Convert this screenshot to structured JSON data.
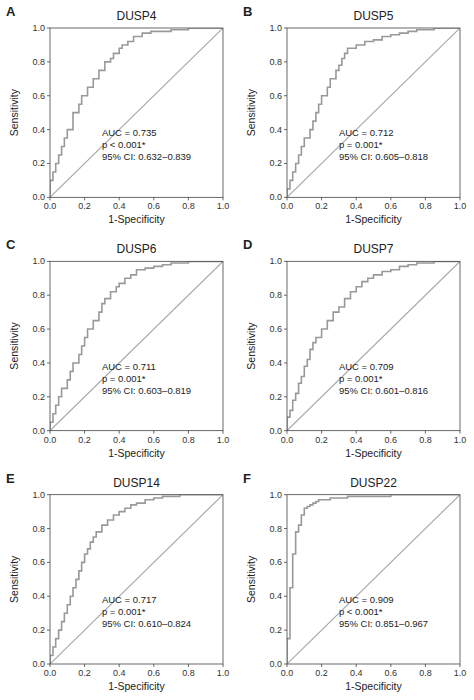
{
  "chart_data": [
    {
      "type": "line",
      "panel_label": "A",
      "title": "DUSP4",
      "x_label": "1-Specificity",
      "y_label": "Sensitivity",
      "annotations": [
        "AUC = 0.735",
        "p < 0.001*",
        "95% CI: 0.632–0.839"
      ],
      "xlim": [
        0,
        1
      ],
      "ylim": [
        0,
        1
      ],
      "xticks": [
        {
          "value": 0,
          "label": "0.0"
        },
        0.2,
        0.4,
        0.6,
        0.8,
        {
          "value": 1,
          "label": "1.0"
        }
      ],
      "yticks": [
        {
          "value": 0,
          "label": "0.0"
        },
        0.2,
        0.4,
        0.6,
        0.8,
        {
          "value": 1,
          "label": "1.0"
        }
      ],
      "grid": false,
      "series": [
        {
          "type": "line",
          "color": "#aaaaaa",
          "x": [
            0,
            1
          ],
          "values": [
            0,
            1
          ]
        },
        {
          "type": "step",
          "color": "#999999",
          "x": [
            0.0,
            0.0,
            0.017,
            0.017,
            0.033,
            0.05,
            0.05,
            0.067,
            0.083,
            0.083,
            0.1,
            0.117,
            0.133,
            0.133,
            0.15,
            0.167,
            0.183,
            0.2,
            0.217,
            0.233,
            0.25,
            0.267,
            0.283,
            0.3,
            0.317,
            0.333,
            0.35,
            0.367,
            0.383,
            0.4,
            0.417,
            0.433,
            0.45,
            0.467,
            0.483,
            0.5,
            0.517,
            0.533,
            0.55,
            0.567,
            0.583,
            0.6,
            0.65,
            0.7,
            0.75,
            0.8,
            0.85,
            0.9,
            0.95,
            1.0
          ],
          "values": [
            0.0,
            0.1,
            0.1,
            0.15,
            0.2,
            0.2,
            0.25,
            0.3,
            0.3,
            0.35,
            0.4,
            0.4,
            0.45,
            0.5,
            0.5,
            0.55,
            0.6,
            0.6,
            0.65,
            0.65,
            0.7,
            0.7,
            0.75,
            0.75,
            0.8,
            0.8,
            0.82,
            0.85,
            0.85,
            0.88,
            0.9,
            0.9,
            0.92,
            0.92,
            0.95,
            0.95,
            0.95,
            0.97,
            0.97,
            0.97,
            0.98,
            0.98,
            0.98,
            0.99,
            0.99,
            1.0,
            1.0,
            1.0,
            1.0,
            1.0
          ]
        }
      ]
    },
    {
      "type": "line",
      "panel_label": "B",
      "title": "DUSP5",
      "x_label": "1-Specificity",
      "y_label": "Sensitivity",
      "annotations": [
        "AUC = 0.712",
        "p = 0.001*",
        "95% CI: 0.605–0.818"
      ],
      "xlim": [
        0,
        1
      ],
      "ylim": [
        0,
        1
      ],
      "xticks": [
        {
          "value": 0,
          "label": "0.0"
        },
        0.2,
        0.4,
        0.6,
        0.8,
        {
          "value": 1,
          "label": "1.0"
        }
      ],
      "yticks": [
        {
          "value": 0,
          "label": "0.0"
        },
        0.2,
        0.4,
        0.6,
        0.8,
        {
          "value": 1,
          "label": "1.0"
        }
      ],
      "grid": false,
      "series": [
        {
          "type": "line",
          "color": "#aaaaaa",
          "x": [
            0,
            1
          ],
          "values": [
            0,
            1
          ]
        },
        {
          "type": "step",
          "color": "#999999",
          "x": [
            0.0,
            0.0,
            0.017,
            0.033,
            0.05,
            0.067,
            0.083,
            0.1,
            0.117,
            0.133,
            0.15,
            0.167,
            0.183,
            0.2,
            0.217,
            0.233,
            0.25,
            0.267,
            0.283,
            0.3,
            0.317,
            0.333,
            0.35,
            0.4,
            0.45,
            0.5,
            0.55,
            0.6,
            0.65,
            0.7,
            0.75,
            0.8,
            0.85,
            0.9,
            0.95,
            1.0
          ],
          "values": [
            0.0,
            0.05,
            0.1,
            0.15,
            0.2,
            0.25,
            0.3,
            0.35,
            0.35,
            0.4,
            0.45,
            0.5,
            0.55,
            0.6,
            0.6,
            0.65,
            0.7,
            0.7,
            0.75,
            0.78,
            0.82,
            0.85,
            0.88,
            0.9,
            0.92,
            0.93,
            0.95,
            0.96,
            0.97,
            0.98,
            0.99,
            0.99,
            1.0,
            1.0,
            1.0,
            1.0
          ]
        }
      ]
    },
    {
      "type": "line",
      "panel_label": "C",
      "title": "DUSP6",
      "x_label": "1-Specificity",
      "y_label": "Sensitivity",
      "annotations": [
        "AUC = 0.711",
        "p = 0.001*",
        "95% CI: 0.603–0.819"
      ],
      "xlim": [
        0,
        1
      ],
      "ylim": [
        0,
        1
      ],
      "xticks": [
        {
          "value": 0,
          "label": "0.0"
        },
        0.2,
        0.4,
        0.6,
        0.8,
        {
          "value": 1,
          "label": "1.0"
        }
      ],
      "yticks": [
        {
          "value": 0,
          "label": "0.0"
        },
        0.2,
        0.4,
        0.6,
        0.8,
        {
          "value": 1,
          "label": "1.0"
        }
      ],
      "grid": false,
      "series": [
        {
          "type": "line",
          "color": "#aaaaaa",
          "x": [
            0,
            1
          ],
          "values": [
            0,
            1
          ]
        },
        {
          "type": "step",
          "color": "#999999",
          "x": [
            0.0,
            0.0,
            0.017,
            0.033,
            0.05,
            0.067,
            0.083,
            0.1,
            0.117,
            0.133,
            0.15,
            0.167,
            0.183,
            0.2,
            0.217,
            0.25,
            0.283,
            0.3,
            0.317,
            0.35,
            0.383,
            0.4,
            0.433,
            0.467,
            0.5,
            0.55,
            0.6,
            0.65,
            0.7,
            0.75,
            0.8,
            0.85,
            0.9,
            1.0
          ],
          "values": [
            0.0,
            0.05,
            0.1,
            0.15,
            0.2,
            0.25,
            0.25,
            0.3,
            0.35,
            0.4,
            0.4,
            0.45,
            0.5,
            0.55,
            0.6,
            0.65,
            0.7,
            0.75,
            0.78,
            0.82,
            0.85,
            0.87,
            0.9,
            0.92,
            0.95,
            0.96,
            0.97,
            0.98,
            0.99,
            0.99,
            1.0,
            1.0,
            1.0,
            1.0
          ]
        }
      ]
    },
    {
      "type": "line",
      "panel_label": "D",
      "title": "DUSP7",
      "x_label": "1-Specificity",
      "y_label": "Sensitivity",
      "annotations": [
        "AUC = 0.709",
        "p = 0.001*",
        "95% CI: 0.601–0.816"
      ],
      "xlim": [
        0,
        1
      ],
      "ylim": [
        0,
        1
      ],
      "xticks": [
        {
          "value": 0,
          "label": "0.0"
        },
        0.2,
        0.4,
        0.6,
        0.8,
        {
          "value": 1,
          "label": "1.0"
        }
      ],
      "yticks": [
        {
          "value": 0,
          "label": "0.0"
        },
        0.2,
        0.4,
        0.6,
        0.8,
        {
          "value": 1,
          "label": "1.0"
        }
      ],
      "grid": false,
      "series": [
        {
          "type": "line",
          "color": "#aaaaaa",
          "x": [
            0,
            1
          ],
          "values": [
            0,
            1
          ]
        },
        {
          "type": "step",
          "color": "#999999",
          "x": [
            0.0,
            0.0,
            0.017,
            0.033,
            0.05,
            0.067,
            0.083,
            0.1,
            0.117,
            0.133,
            0.15,
            0.167,
            0.2,
            0.233,
            0.267,
            0.3,
            0.333,
            0.367,
            0.4,
            0.433,
            0.467,
            0.5,
            0.55,
            0.6,
            0.65,
            0.7,
            0.75,
            0.8,
            0.85,
            0.9,
            0.95,
            1.0
          ],
          "values": [
            0.0,
            0.08,
            0.12,
            0.18,
            0.22,
            0.28,
            0.32,
            0.38,
            0.42,
            0.48,
            0.52,
            0.55,
            0.6,
            0.65,
            0.7,
            0.73,
            0.78,
            0.82,
            0.85,
            0.88,
            0.9,
            0.92,
            0.94,
            0.95,
            0.97,
            0.98,
            0.99,
            0.99,
            1.0,
            1.0,
            1.0,
            1.0
          ]
        }
      ]
    },
    {
      "type": "line",
      "panel_label": "E",
      "title": "DUSP14",
      "x_label": "1-Specificity",
      "y_label": "Sensitivity",
      "annotations": [
        "AUC = 0.717",
        "p = 0.001*",
        "95% CI: 0.610–0.824"
      ],
      "xlim": [
        0,
        1
      ],
      "ylim": [
        0,
        1
      ],
      "xticks": [
        {
          "value": 0,
          "label": "0.0"
        },
        0.2,
        0.4,
        0.6,
        0.8,
        {
          "value": 1,
          "label": "1.0"
        }
      ],
      "yticks": [
        {
          "value": 0,
          "label": "0.0"
        },
        0.2,
        0.4,
        0.6,
        0.8,
        {
          "value": 1,
          "label": "1.0"
        }
      ],
      "grid": false,
      "series": [
        {
          "type": "line",
          "color": "#aaaaaa",
          "x": [
            0,
            1
          ],
          "values": [
            0,
            1
          ]
        },
        {
          "type": "step",
          "color": "#999999",
          "x": [
            0.0,
            0.0,
            0.017,
            0.033,
            0.05,
            0.067,
            0.083,
            0.1,
            0.117,
            0.133,
            0.15,
            0.167,
            0.183,
            0.2,
            0.217,
            0.233,
            0.25,
            0.267,
            0.3,
            0.333,
            0.367,
            0.4,
            0.433,
            0.467,
            0.5,
            0.55,
            0.6,
            0.65,
            0.7,
            0.75,
            0.8,
            0.85,
            0.9,
            0.95,
            1.0
          ],
          "values": [
            0.0,
            0.05,
            0.1,
            0.15,
            0.2,
            0.25,
            0.3,
            0.35,
            0.4,
            0.45,
            0.5,
            0.55,
            0.6,
            0.65,
            0.68,
            0.72,
            0.75,
            0.78,
            0.82,
            0.85,
            0.88,
            0.9,
            0.92,
            0.94,
            0.95,
            0.97,
            0.98,
            0.99,
            0.99,
            1.0,
            1.0,
            1.0,
            1.0,
            1.0,
            1.0
          ]
        }
      ]
    },
    {
      "type": "line",
      "panel_label": "F",
      "title": "DUSP22",
      "x_label": "1-Specificity",
      "y_label": "Sensitivity",
      "annotations": [
        "AUC = 0.909",
        "p < 0.001*",
        "95% CI: 0.851–0.967"
      ],
      "xlim": [
        0,
        1
      ],
      "ylim": [
        0,
        1
      ],
      "xticks": [
        {
          "value": 0,
          "label": "0.0"
        },
        0.2,
        0.4,
        0.6,
        0.8,
        {
          "value": 1,
          "label": "1.0"
        }
      ],
      "yticks": [
        {
          "value": 0,
          "label": "0.0"
        },
        0.2,
        0.4,
        0.6,
        0.8,
        {
          "value": 1,
          "label": "1.0"
        }
      ],
      "grid": false,
      "series": [
        {
          "type": "line",
          "color": "#aaaaaa",
          "x": [
            0,
            1
          ],
          "values": [
            0,
            1
          ]
        },
        {
          "type": "step",
          "color": "#999999",
          "x": [
            0.0,
            0.0,
            0.017,
            0.017,
            0.033,
            0.033,
            0.05,
            0.05,
            0.067,
            0.083,
            0.083,
            0.1,
            0.1,
            0.117,
            0.133,
            0.15,
            0.167,
            0.183,
            0.2,
            0.25,
            0.3,
            0.35,
            0.4,
            0.5,
            0.6,
            0.7,
            0.8,
            0.9,
            1.0
          ],
          "values": [
            0.0,
            0.15,
            0.3,
            0.45,
            0.55,
            0.65,
            0.72,
            0.78,
            0.82,
            0.85,
            0.88,
            0.9,
            0.92,
            0.93,
            0.94,
            0.95,
            0.96,
            0.97,
            0.97,
            0.98,
            0.98,
            0.99,
            0.99,
            0.99,
            1.0,
            1.0,
            1.0,
            1.0,
            1.0
          ]
        }
      ]
    }
  ]
}
